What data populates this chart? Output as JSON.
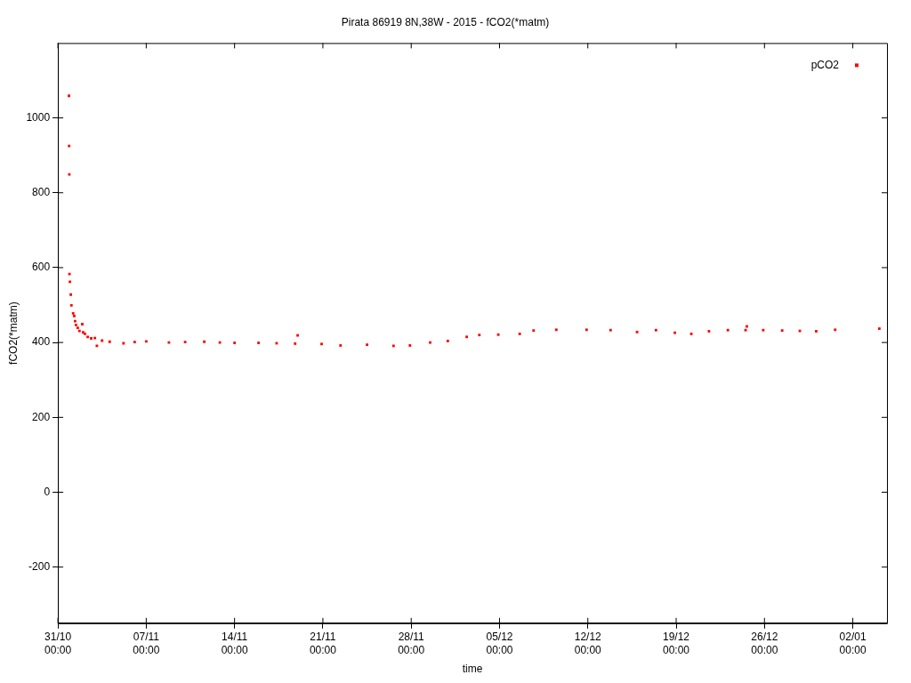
{
  "chart_data": {
    "type": "scatter",
    "title": "Pirata 86919 8N,38W - 2015 - fCO2(*matm)",
    "xlabel": "time",
    "ylabel": "fCO2(*matm)",
    "xlim": [
      "2015-10-31T00:00",
      "2016-01-04T17:00"
    ],
    "xticks": [
      {
        "value": "2015-10-31T00:00",
        "label": "31/10\n00:00"
      },
      {
        "value": "2015-11-07T00:00",
        "label": "07/11\n00:00"
      },
      {
        "value": "2015-11-14T00:00",
        "label": "14/11\n00:00"
      },
      {
        "value": "2015-11-21T00:00",
        "label": "21/11\n00:00"
      },
      {
        "value": "2015-11-28T00:00",
        "label": "28/11\n00:00"
      },
      {
        "value": "2015-12-05T00:00",
        "label": "05/12\n00:00"
      },
      {
        "value": "2015-12-12T00:00",
        "label": "12/12\n00:00"
      },
      {
        "value": "2015-12-19T00:00",
        "label": "19/12\n00:00"
      },
      {
        "value": "2015-12-26T00:00",
        "label": "26/12\n00:00"
      },
      {
        "value": "2016-01-02T00:00",
        "label": "02/01\n00:00"
      }
    ],
    "ylim": [
      -350,
      1200
    ],
    "yticks": [
      -200,
      0,
      200,
      400,
      600,
      800,
      1000
    ],
    "grid": false,
    "legend": "top right",
    "marker": "square",
    "series": [
      {
        "name": "pCO2",
        "color": "#ff0000",
        "x": [
          "2015-10-31T21:00",
          "2015-10-31T21:20",
          "2015-10-31T21:40",
          "2015-10-31T22:00",
          "2015-10-31T22:50",
          "2015-11-01T00:30",
          "2015-11-01T01:40",
          "2015-11-01T05:00",
          "2015-11-01T07:00",
          "2015-11-01T08:40",
          "2015-11-01T10:20",
          "2015-11-01T13:40",
          "2015-11-01T17:00",
          "2015-11-01T22:20",
          "2015-11-02T00:00",
          "2015-11-02T03:20",
          "2015-11-02T08:40",
          "2015-11-02T15:20",
          "2015-11-02T22:20",
          "2015-11-03T02:10",
          "2015-11-03T12:00",
          "2015-11-04T02:24",
          "2015-11-05T04:48",
          "2015-11-06T02:00",
          "2015-11-07T00:00",
          "2015-11-08T19:12",
          "2015-11-10T02:00",
          "2015-11-11T14:24",
          "2015-11-12T20:00",
          "2015-11-14T00:00",
          "2015-11-15T21:36",
          "2015-11-17T08:00",
          "2015-11-18T19:12",
          "2015-11-19T00:00",
          "2015-11-20T21:36",
          "2015-11-22T09:36",
          "2015-11-24T12:00",
          "2015-11-26T14:24",
          "2015-11-27T21:36",
          "2015-11-29T12:00",
          "2015-11-30T21:36",
          "2015-12-02T09:36",
          "2015-12-03T09:36",
          "2015-12-04T21:36",
          "2015-12-06T14:24",
          "2015-12-07T16:48",
          "2015-12-09T12:00",
          "2015-12-11T21:36",
          "2015-12-13T19:12",
          "2015-12-15T21:36",
          "2015-12-17T09:36",
          "2015-12-18T21:36",
          "2015-12-20T04:48",
          "2015-12-21T14:24",
          "2015-12-23T02:24",
          "2015-12-24T12:00",
          "2015-12-24T14:24",
          "2015-12-25T21:36",
          "2015-12-27T09:36",
          "2015-12-28T19:12",
          "2015-12-30T02:24",
          "2015-12-31T14:24",
          "2016-01-04T02:24"
        ],
        "values": [
          1059,
          925,
          849,
          583,
          562,
          528,
          499,
          478,
          471,
          457,
          447,
          439,
          431,
          449,
          427,
          423,
          415,
          411,
          412,
          391,
          405,
          402,
          398,
          401,
          403,
          400,
          401,
          402,
          400,
          399,
          399,
          398,
          397,
          419,
          396,
          392,
          394,
          391,
          392,
          400,
          404,
          415,
          420,
          421,
          423,
          432,
          434,
          434,
          433,
          428,
          433,
          426,
          423,
          430,
          433,
          433,
          443,
          433,
          432,
          431,
          430,
          434,
          437
        ]
      }
    ]
  }
}
